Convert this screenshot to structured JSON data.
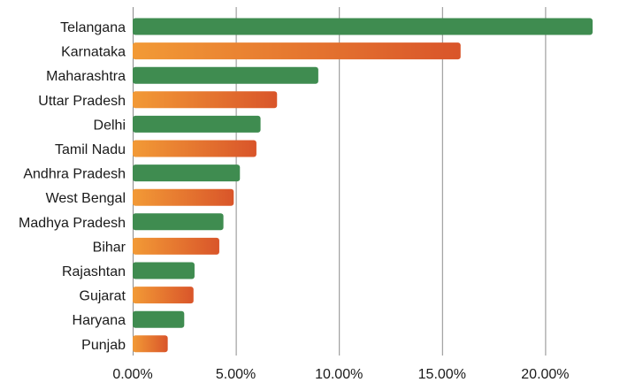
{
  "chart_data": {
    "type": "bar",
    "orientation": "horizontal",
    "categories": [
      "Telangana",
      "Karnataka",
      "Maharashtra",
      "Uttar Pradesh",
      "Delhi",
      "Tamil Nadu",
      "Andhra Pradesh",
      "West Bengal",
      "Madhya Pradesh",
      "Bihar",
      "Rajashtan",
      "Gujarat",
      "Haryana",
      "Punjab"
    ],
    "values": [
      22.3,
      15.9,
      9.0,
      7.0,
      6.2,
      6.0,
      5.2,
      4.9,
      4.4,
      4.2,
      3.0,
      2.95,
      2.5,
      1.7
    ],
    "colors": [
      "green",
      "orange",
      "green",
      "orange",
      "green",
      "orange",
      "green",
      "orange",
      "green",
      "orange",
      "green",
      "orange",
      "green",
      "orange"
    ],
    "palette": {
      "green": "#3f8c50",
      "orange_start": "#f29a36",
      "orange_end": "#d9552a"
    },
    "xlim": [
      0,
      25
    ],
    "x_ticks": [
      0,
      5,
      10,
      15,
      20
    ],
    "x_tick_labels": [
      "0.00%",
      "5.00%",
      "10.00%",
      "15.00%",
      "20.00%"
    ],
    "title": "",
    "xlabel": "",
    "ylabel": "",
    "grid": "vertical",
    "legend": "none"
  }
}
